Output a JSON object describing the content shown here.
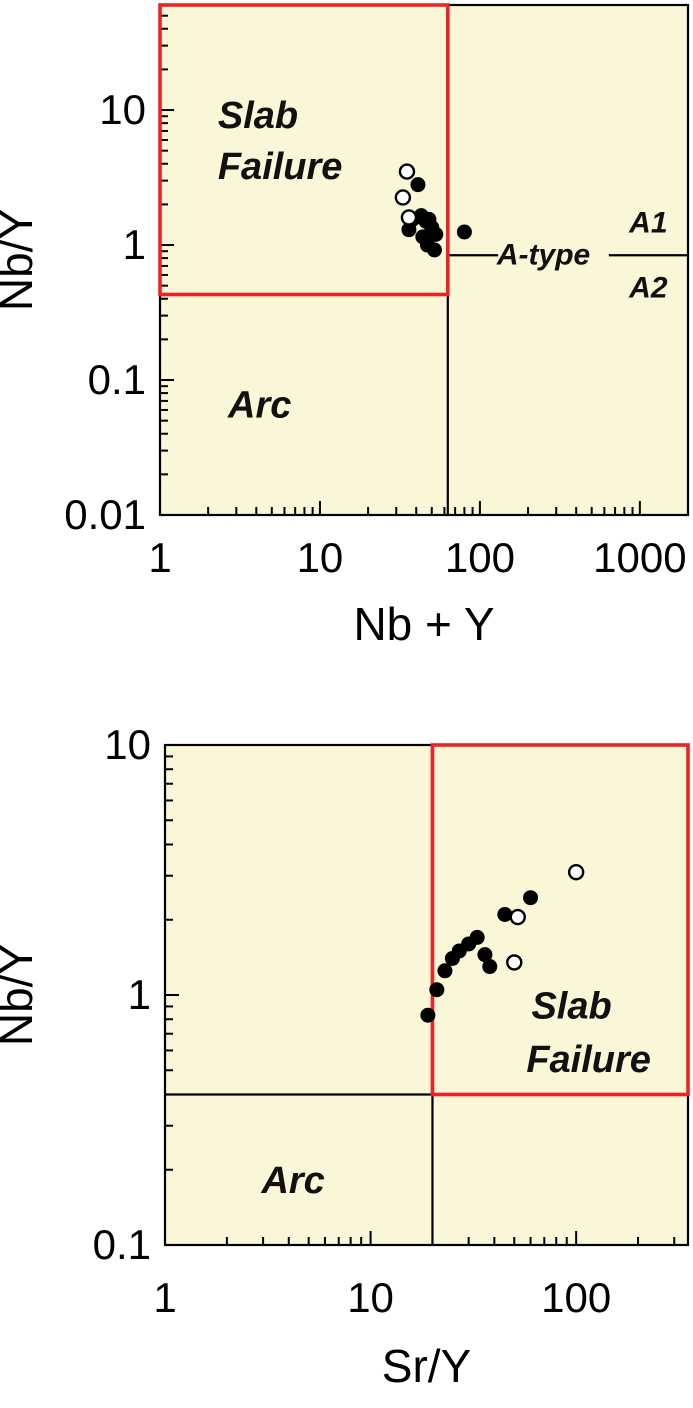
{
  "figure": {
    "description": "Two log-log geochemical discrimination scatter plots"
  },
  "colors": {
    "field_fill": "#FAF6D8",
    "boundary_red": "#ED2224",
    "line_black": "#000000",
    "point_fill": "#000000",
    "point_open_fill": "#FFFFFF"
  },
  "chart_data": [
    {
      "type": "scatter",
      "title": "",
      "xlabel": "Nb + Y",
      "ylabel": "Nb/Y",
      "x_scale": "log",
      "y_scale": "log",
      "xlim": [
        1,
        2000
      ],
      "ylim": [
        0.01,
        60
      ],
      "x_ticks": [
        1,
        10,
        100,
        1000
      ],
      "y_ticks": [
        0.01,
        0.1,
        1,
        10
      ],
      "grid": false,
      "boundary_lines": [
        {
          "orientation": "vertical",
          "x": 63,
          "y1": 0.01,
          "y2": 60
        },
        {
          "orientation": "horizontal",
          "y": 0.84,
          "x1": 63,
          "x2": 130
        },
        {
          "orientation": "horizontal",
          "y": 0.84,
          "x1": 640,
          "x2": 2000
        }
      ],
      "red_box": {
        "x1": 1,
        "x2": 63,
        "y1": 0.43,
        "y2": 60
      },
      "field_labels": [
        {
          "text": "Slab",
          "x": 2.3,
          "y": 9,
          "anchor": "start",
          "style": "region"
        },
        {
          "text": "Failure",
          "x": 2.3,
          "y": 3.8,
          "anchor": "start",
          "style": "region"
        },
        {
          "text": "Arc",
          "x": 4.2,
          "y": 0.065,
          "anchor": "middle",
          "style": "region"
        },
        {
          "text": "A-type",
          "x": 250,
          "y": 0.84,
          "anchor": "middle",
          "style": "small"
        },
        {
          "text": "A1",
          "x": 1130,
          "y": 1.45,
          "anchor": "middle",
          "style": "small"
        },
        {
          "text": "A2",
          "x": 1130,
          "y": 0.48,
          "anchor": "middle",
          "style": "small"
        }
      ],
      "series": [
        {
          "name": "filled-circles",
          "marker": "filled-circle",
          "points": [
            [
              41,
              2.8
            ],
            [
              38,
              1.55
            ],
            [
              36,
              1.3
            ],
            [
              43,
              1.65
            ],
            [
              46,
              1.5
            ],
            [
              44,
              1.15
            ],
            [
              48,
              1.55
            ],
            [
              50,
              1.35
            ],
            [
              47,
              1.0
            ],
            [
              53,
              1.2
            ],
            [
              52,
              0.92
            ],
            [
              80,
              1.25
            ]
          ]
        },
        {
          "name": "open-circles",
          "marker": "open-circle",
          "points": [
            [
              35,
              3.5
            ],
            [
              33,
              2.25
            ],
            [
              36,
              1.6
            ]
          ]
        }
      ]
    },
    {
      "type": "scatter",
      "title": "",
      "xlabel": "Sr/Y",
      "ylabel": "Nb/Y",
      "x_scale": "log",
      "y_scale": "log",
      "xlim": [
        1,
        350
      ],
      "ylim": [
        0.1,
        10
      ],
      "x_ticks": [
        1,
        10,
        100
      ],
      "y_ticks": [
        0.1,
        1,
        10
      ],
      "grid": false,
      "boundary_lines": [
        {
          "orientation": "horizontal",
          "y": 0.4,
          "x1": 1,
          "x2": 350
        },
        {
          "orientation": "vertical",
          "x": 20,
          "y1": 0.1,
          "y2": 10
        }
      ],
      "red_box": {
        "x1": 20,
        "x2": 350,
        "y1": 0.4,
        "y2": 10
      },
      "field_labels": [
        {
          "text": "Slab",
          "x": 95,
          "y": 0.9,
          "anchor": "middle",
          "style": "region"
        },
        {
          "text": "Failure",
          "x": 115,
          "y": 0.55,
          "anchor": "middle",
          "style": "region"
        },
        {
          "text": "Arc",
          "x": 4.2,
          "y": 0.18,
          "anchor": "middle",
          "style": "region"
        }
      ],
      "series": [
        {
          "name": "filled-circles",
          "marker": "filled-circle",
          "points": [
            [
              19,
              0.83
            ],
            [
              21,
              1.05
            ],
            [
              23,
              1.25
            ],
            [
              25,
              1.4
            ],
            [
              27,
              1.5
            ],
            [
              30,
              1.6
            ],
            [
              33,
              1.7
            ],
            [
              36,
              1.45
            ],
            [
              38,
              1.3
            ],
            [
              45,
              2.1
            ],
            [
              60,
              2.45
            ]
          ]
        },
        {
          "name": "open-circles",
          "marker": "open-circle",
          "points": [
            [
              52,
              2.05
            ],
            [
              50,
              1.35
            ],
            [
              100,
              3.1
            ]
          ]
        }
      ]
    }
  ]
}
